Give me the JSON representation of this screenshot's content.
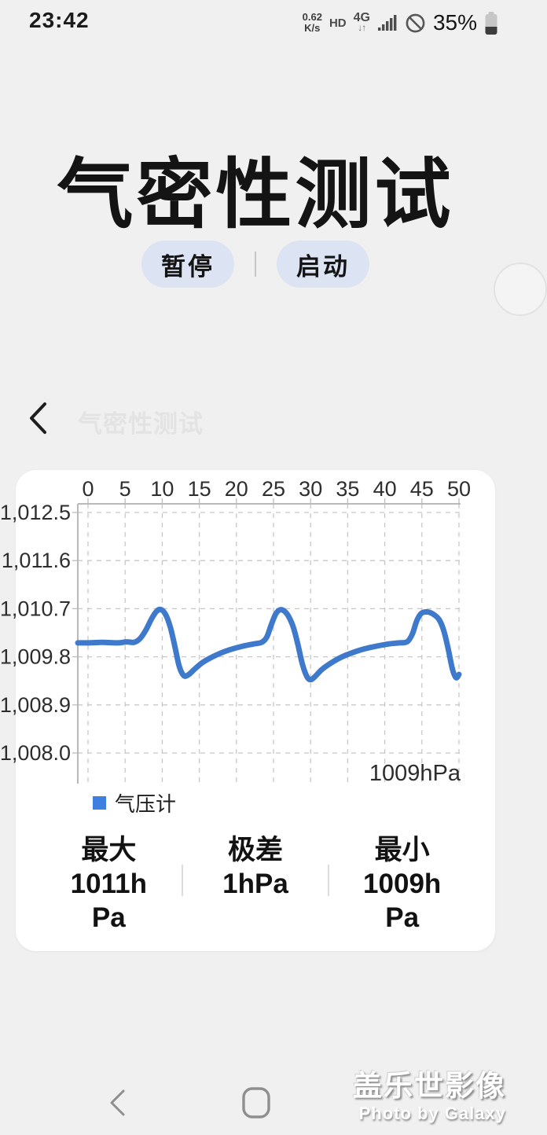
{
  "status_bar": {
    "time": "23:42",
    "net_speed_value": "0.62",
    "net_speed_unit": "K/s",
    "hd": "HD",
    "network": "4G",
    "network_arrows": "↓↑",
    "battery_percent": "35%"
  },
  "hero": {
    "title": "气密性测试",
    "buttons": [
      {
        "label": "暂停"
      },
      {
        "label": "启动"
      }
    ]
  },
  "app_header": {
    "ghost_title": "气密性测试"
  },
  "chart_card": {
    "stats": [
      {
        "label": "最大",
        "value": "1011hPa",
        "value_lines": [
          "1011h",
          "Pa"
        ]
      },
      {
        "label": "极差",
        "value": "1hPa",
        "value_lines": [
          "1hPa"
        ]
      },
      {
        "label": "最小",
        "value": "1009hPa",
        "value_lines": [
          "1009h",
          "Pa"
        ]
      }
    ]
  },
  "chart_data": {
    "type": "line",
    "title": "",
    "xlabel": "",
    "ylabel": "",
    "x_ticks": [
      0,
      5,
      10,
      15,
      20,
      25,
      30,
      35,
      40,
      45,
      50
    ],
    "y_tick_values": [
      1012.5,
      1011.6,
      1010.7,
      1009.8,
      1008.9,
      1008.0
    ],
    "y_tick_labels": [
      "1,012.5",
      "1,011.6",
      "1,010.7",
      "1,009.8",
      "1,008.9",
      "1,008.0"
    ],
    "xlim": [
      0,
      50
    ],
    "ylim": [
      1007.5,
      1012.7
    ],
    "grid": "dashed",
    "x_axis_position": "top",
    "annotation": "1009hPa",
    "legend": {
      "position": "bottom-left",
      "color": "#3f7fe0"
    },
    "series": [
      {
        "name": "气压计",
        "color": "#3e79cc",
        "unit": "hPa",
        "points": [
          [
            0,
            1010.06
          ],
          [
            2,
            1010.07
          ],
          [
            4,
            1010.06
          ],
          [
            5.2,
            1010.08
          ],
          [
            6.2,
            1010.07
          ],
          [
            7,
            1010.14
          ],
          [
            7.8,
            1010.3
          ],
          [
            8.6,
            1010.52
          ],
          [
            9.3,
            1010.66
          ],
          [
            9.9,
            1010.68
          ],
          [
            10.5,
            1010.58
          ],
          [
            11.1,
            1010.35
          ],
          [
            11.7,
            1010.0
          ],
          [
            12.3,
            1009.62
          ],
          [
            12.9,
            1009.45
          ],
          [
            13.5,
            1009.46
          ],
          [
            14.3,
            1009.56
          ],
          [
            15.3,
            1009.68
          ],
          [
            16.5,
            1009.78
          ],
          [
            17.9,
            1009.87
          ],
          [
            19.3,
            1009.94
          ],
          [
            20.9,
            1010.0
          ],
          [
            22.3,
            1010.04
          ],
          [
            23.4,
            1010.07
          ],
          [
            24.1,
            1010.17
          ],
          [
            24.7,
            1010.4
          ],
          [
            25.3,
            1010.6
          ],
          [
            25.9,
            1010.68
          ],
          [
            26.5,
            1010.65
          ],
          [
            27.1,
            1010.54
          ],
          [
            27.7,
            1010.34
          ],
          [
            28.3,
            1010.02
          ],
          [
            28.9,
            1009.66
          ],
          [
            29.5,
            1009.43
          ],
          [
            30,
            1009.37
          ],
          [
            30.6,
            1009.43
          ],
          [
            31.5,
            1009.56
          ],
          [
            32.7,
            1009.68
          ],
          [
            34.1,
            1009.79
          ],
          [
            35.7,
            1009.88
          ],
          [
            37.3,
            1009.95
          ],
          [
            38.9,
            1010.0
          ],
          [
            40.5,
            1010.04
          ],
          [
            41.9,
            1010.06
          ],
          [
            43,
            1010.08
          ],
          [
            43.7,
            1010.22
          ],
          [
            44.3,
            1010.47
          ],
          [
            44.9,
            1010.61
          ],
          [
            45.7,
            1010.64
          ],
          [
            46.5,
            1010.6
          ],
          [
            47.3,
            1010.5
          ],
          [
            47.9,
            1010.31
          ],
          [
            48.5,
            1009.98
          ],
          [
            49.1,
            1009.58
          ],
          [
            49.6,
            1009.41
          ],
          [
            50,
            1009.47
          ]
        ]
      }
    ]
  },
  "watermark": {
    "line1": "盖乐世影像",
    "line2": "Photo by Galaxy"
  }
}
